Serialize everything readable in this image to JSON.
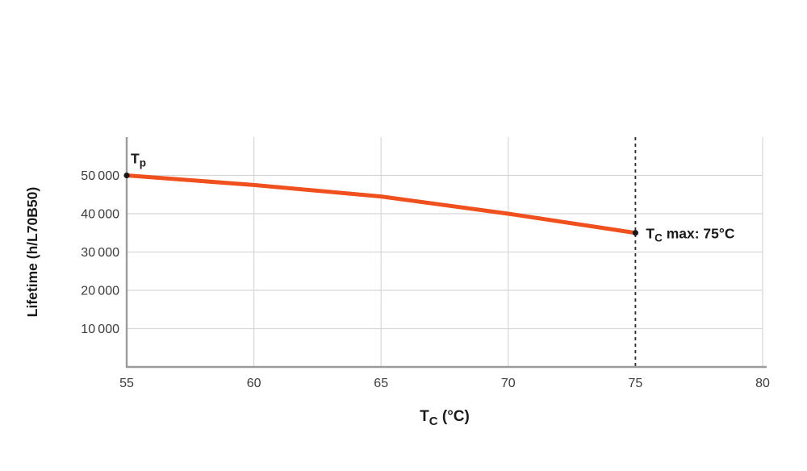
{
  "page": {
    "background": "#ffffff"
  },
  "chart_data": {
    "type": "line",
    "title": "",
    "x": [
      55,
      60,
      65,
      70,
      75
    ],
    "series": [
      {
        "name": "Lifetime",
        "values": [
          50000,
          47500,
          44500,
          40000,
          35000
        ],
        "color": "#F04F1E"
      }
    ],
    "xlabel": {
      "main": "T",
      "sub": "C",
      "rest": " (°C)"
    },
    "ylabel": "Lifetime (h/L70B50)",
    "xlim": [
      55,
      80
    ],
    "ylim": [
      0,
      60000
    ],
    "x_ticks": [
      55,
      60,
      65,
      70,
      75,
      80
    ],
    "x_tick_labels": [
      "55",
      "60",
      "65",
      "70",
      "75",
      "80"
    ],
    "y_ticks": [
      10000,
      20000,
      30000,
      40000,
      50000
    ],
    "y_tick_labels": [
      "10 000",
      "20 000",
      "30 000",
      "40 000",
      "50 000"
    ],
    "grid": true,
    "legend": "none",
    "reference_line": {
      "x": 75,
      "style": "dashed"
    },
    "markers": [
      {
        "x": 55,
        "y": 50000
      },
      {
        "x": 75,
        "y": 35000
      }
    ],
    "annotations": [
      {
        "x": 55,
        "y": 50000,
        "main": "T",
        "sub": "p",
        "rest": "",
        "placement": "above-right"
      },
      {
        "x": 75,
        "y": 35000,
        "main": "T",
        "sub": "C",
        "rest": " max: 75°C",
        "placement": "right"
      }
    ],
    "colors": {
      "line": "#F04F1E",
      "marker": "#1a1a1a",
      "axis": "#9b9b9b",
      "grid": "#d7d7d7",
      "dashed": "#2b2b2b",
      "tick_text": "#3c3c3c",
      "label_text": "#1a1a1a"
    }
  }
}
